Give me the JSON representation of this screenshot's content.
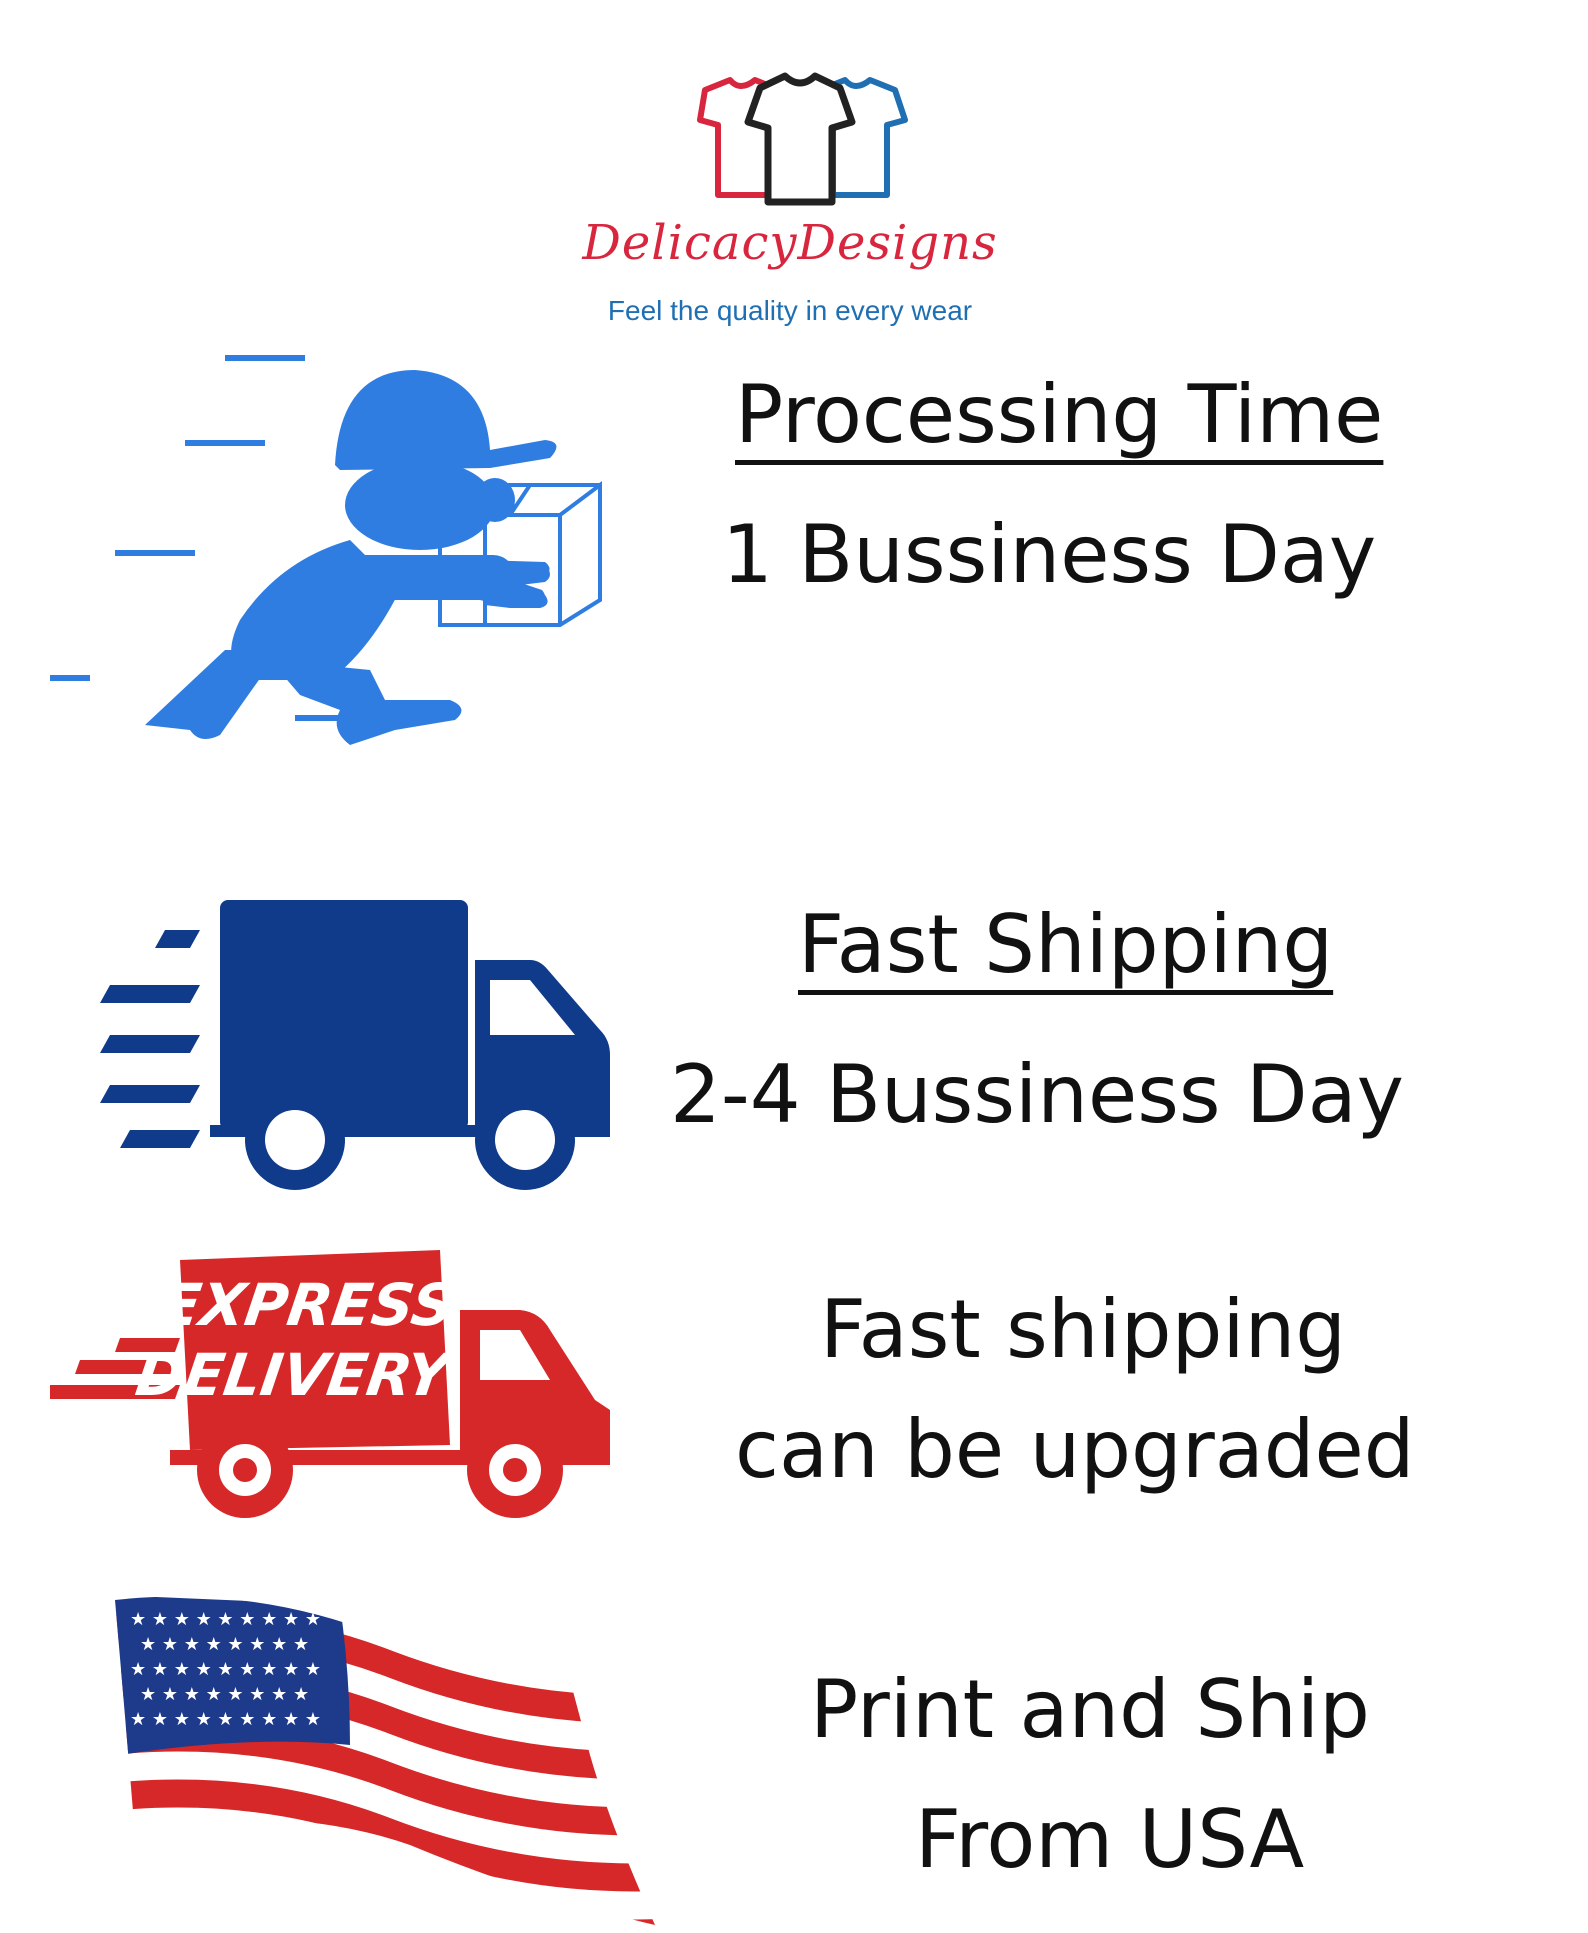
{
  "brand": {
    "name": "DelicacyDesigns",
    "tagline": "Feel the quality in every wear",
    "colors": {
      "red": "#d7263d",
      "blue": "#1f6fb2",
      "black": "#222222"
    }
  },
  "processing": {
    "heading": "Processing Time",
    "value": "1 Bussiness Day",
    "icon": "courier-running-with-package-icon"
  },
  "shipping": {
    "heading": "Fast Shipping",
    "value": "2-4 Bussiness Day",
    "icon": "delivery-truck-icon"
  },
  "express": {
    "badge_line1": "EXPRESS",
    "badge_line2": "DELIVERY",
    "line1": "Fast shipping",
    "line2": "can be upgraded",
    "icon": "express-delivery-truck-icon"
  },
  "origin": {
    "line1": "Print and Ship",
    "line2": "From USA",
    "icon": "usa-flag-icon"
  },
  "colors": {
    "courier_blue": "#2f7de1",
    "truck_navy": "#0f3b8a",
    "express_red": "#d62828",
    "text": "#111111"
  }
}
